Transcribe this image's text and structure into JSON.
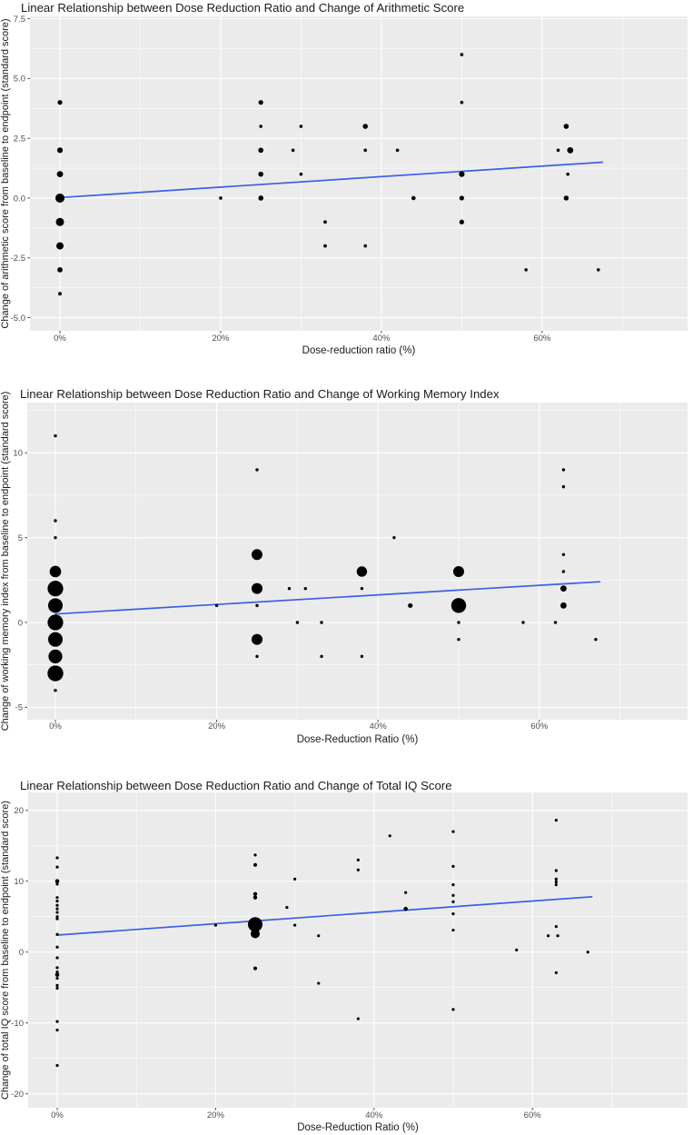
{
  "figure": {
    "kind": "three stacked ggplot-style bubble scatter plots with linear trend lines"
  },
  "colors": {
    "page_bg": "#FFFFFF",
    "panel_bg": "#EBEBEB",
    "grid": "#FFFFFF",
    "point": "#000000",
    "trend": "#3B5FE6",
    "tick_mark": "#333333",
    "tick_label": "#4D4D4D",
    "title_text": "#1A1A1A",
    "axis_title_text": "#1A1A1A"
  },
  "chart_data": [
    {
      "type": "scatter",
      "title": "Linear Relationship between Dose Reduction Ratio and Change of Arithmetic Score",
      "xlabel": "Dose-reduction ratio (%)",
      "ylabel": "Change of arithmetic score from baseline to endpoint (standard score)",
      "legend": "none",
      "grid": "major+minor",
      "x_ticks": {
        "values": [
          0,
          20,
          40,
          60
        ],
        "labels": [
          "0%",
          "20%",
          "40%",
          "60%"
        ]
      },
      "y_ticks": {
        "values": [
          7.5,
          5.0,
          2.5,
          0.0,
          -2.5,
          -5.0
        ],
        "labels": [
          "7.5",
          "5.0",
          "2.5",
          "0.0",
          "-2.5",
          "-5.0"
        ]
      },
      "xlim": [
        -3.73,
        78.1
      ],
      "ylim": [
        -5.55,
        7.6
      ],
      "point_format": [
        "dose_reduction_pct",
        "score_change",
        "marker_radius_px"
      ],
      "points": [
        [
          0,
          4,
          2.6
        ],
        [
          0,
          2,
          3.1
        ],
        [
          0,
          1,
          3.4
        ],
        [
          0,
          0,
          5
        ],
        [
          0,
          -1,
          4.5
        ],
        [
          0,
          -2,
          4
        ],
        [
          0,
          -3,
          2.9
        ],
        [
          0,
          -4,
          2
        ],
        [
          20,
          0,
          1.8
        ],
        [
          25,
          4,
          2.6
        ],
        [
          25,
          3,
          1.8
        ],
        [
          25,
          2,
          2.8
        ],
        [
          25,
          1,
          2.8
        ],
        [
          25,
          0,
          2.8
        ],
        [
          29,
          2,
          1.8
        ],
        [
          30,
          3,
          1.8
        ],
        [
          30,
          1,
          1.8
        ],
        [
          33,
          -1,
          1.9
        ],
        [
          33,
          -2,
          1.9
        ],
        [
          38,
          3,
          2.8
        ],
        [
          38,
          2,
          1.8
        ],
        [
          38,
          -2,
          1.8
        ],
        [
          42,
          2,
          1.8
        ],
        [
          44,
          0,
          2.3
        ],
        [
          50,
          6,
          1.8
        ],
        [
          50,
          4,
          1.8
        ],
        [
          50,
          1,
          3.1
        ],
        [
          50,
          0,
          2.6
        ],
        [
          50,
          -1,
          2.6
        ],
        [
          58,
          -3,
          1.8
        ],
        [
          62,
          2,
          1.8
        ],
        [
          63.5,
          2,
          3.4
        ],
        [
          63,
          3,
          2.8
        ],
        [
          63.2,
          1,
          1.8
        ],
        [
          63,
          0,
          2.7
        ],
        [
          67,
          -3,
          1.8
        ]
      ],
      "trend_line": {
        "x": [
          0,
          67.5
        ],
        "y": [
          0.02,
          1.5
        ]
      }
    },
    {
      "type": "scatter",
      "title": "Linear Relationship between Dose Reduction Ratio and Change of Working Memory Index",
      "xlabel": "Dose-Reduction Ratio (%)",
      "ylabel": "Change of working memory index from baseline to endpoint (standard score)",
      "legend": "none",
      "grid": "major+minor",
      "x_ticks": {
        "values": [
          0,
          20,
          40,
          60
        ],
        "labels": [
          "0%",
          "20%",
          "40%",
          "60%"
        ]
      },
      "y_ticks": {
        "values": [
          10,
          5,
          0,
          -5
        ],
        "labels": [
          "10",
          "5",
          "0",
          "-5"
        ]
      },
      "xlim": [
        -3.49,
        78.38
      ],
      "ylim": [
        -5.73,
        12.96
      ],
      "point_format": [
        "dose_reduction_pct",
        "score_change",
        "marker_radius_px"
      ],
      "points": [
        [
          0,
          11,
          1.7
        ],
        [
          0,
          6,
          1.7
        ],
        [
          0,
          5,
          1.7
        ],
        [
          0,
          3,
          6.3
        ],
        [
          0,
          2,
          8.6
        ],
        [
          0,
          1,
          8
        ],
        [
          0,
          0,
          8.6
        ],
        [
          0,
          -1,
          8
        ],
        [
          0,
          -2,
          7.6
        ],
        [
          0,
          -3,
          8.7
        ],
        [
          0,
          -4,
          1.7
        ],
        [
          20,
          1,
          1.7
        ],
        [
          25,
          9,
          1.7
        ],
        [
          25,
          4,
          6
        ],
        [
          25,
          2,
          6
        ],
        [
          25,
          1,
          1.7
        ],
        [
          25,
          -1,
          6
        ],
        [
          25,
          -2,
          1.7
        ],
        [
          29,
          2,
          1.7
        ],
        [
          31,
          2,
          1.7
        ],
        [
          30,
          0,
          1.7
        ],
        [
          33,
          0,
          1.7
        ],
        [
          33,
          -2,
          1.7
        ],
        [
          38,
          3,
          5.7
        ],
        [
          38,
          2,
          1.7
        ],
        [
          38,
          -2,
          1.7
        ],
        [
          42,
          5,
          1.7
        ],
        [
          44,
          1,
          2.6
        ],
        [
          50,
          3,
          6
        ],
        [
          50,
          1,
          8.2
        ],
        [
          50,
          0,
          1.7
        ],
        [
          50,
          -1,
          1.7
        ],
        [
          58,
          0,
          1.7
        ],
        [
          62,
          0,
          1.7
        ],
        [
          63,
          9,
          1.7
        ],
        [
          63,
          8,
          1.7
        ],
        [
          63,
          4,
          1.7
        ],
        [
          63,
          3,
          1.7
        ],
        [
          63,
          2,
          3.4
        ],
        [
          63,
          1,
          3.4
        ],
        [
          67,
          -1,
          1.7
        ]
      ],
      "trend_line": {
        "x": [
          0,
          67.5
        ],
        "y": [
          0.5,
          2.4
        ]
      }
    },
    {
      "type": "scatter",
      "title": "Linear Relationship between Dose Reduction Ratio and Change of Total IQ Score",
      "xlabel": "Dose-Reduction Ratio (%)",
      "ylabel": "Change of total IQ score from baseline to endpoint (standard score)",
      "legend": "none",
      "grid": "major+minor",
      "x_ticks": {
        "values": [
          0,
          20,
          40,
          60
        ],
        "labels": [
          "0%",
          "20%",
          "40%",
          "60%"
        ]
      },
      "y_ticks": {
        "values": [
          20,
          10,
          0,
          -10,
          -20
        ],
        "labels": [
          "20",
          "10",
          "0",
          "-10",
          "-20"
        ]
      },
      "xlim": [
        -3.67,
        79.59
      ],
      "ylim": [
        -21.96,
        22.53
      ],
      "point_format": [
        "dose_reduction_pct",
        "score_change",
        "marker_radius_px"
      ],
      "points": [
        [
          0,
          13.3,
          1.6
        ],
        [
          0,
          12,
          1.6
        ],
        [
          0,
          10,
          2.3
        ],
        [
          0,
          9.6,
          1.6
        ],
        [
          0,
          7.7,
          1.6
        ],
        [
          0,
          7.2,
          1.6
        ],
        [
          0,
          6.6,
          1.6
        ],
        [
          0,
          6.1,
          1.6
        ],
        [
          0,
          5.6,
          1.6
        ],
        [
          0,
          5,
          1.6
        ],
        [
          0,
          4.7,
          1.6
        ],
        [
          0,
          2.5,
          1.6
        ],
        [
          0,
          0.7,
          1.6
        ],
        [
          0,
          -0.8,
          1.6
        ],
        [
          0,
          -2.2,
          1.6
        ],
        [
          0,
          -2.8,
          1.6
        ],
        [
          0,
          -3.2,
          2.3
        ],
        [
          0,
          -3.7,
          1.6
        ],
        [
          0,
          -4.7,
          1.6
        ],
        [
          0,
          -5.1,
          1.6
        ],
        [
          0,
          -9.8,
          1.6
        ],
        [
          0,
          -11,
          1.6
        ],
        [
          0,
          -16,
          1.6
        ],
        [
          20,
          3.8,
          1.6
        ],
        [
          25,
          13.7,
          1.6
        ],
        [
          25,
          12.3,
          2
        ],
        [
          25,
          8.2,
          2.2
        ],
        [
          25,
          7.7,
          2.2
        ],
        [
          25,
          3.9,
          8
        ],
        [
          25,
          2.6,
          5
        ],
        [
          25,
          -2.3,
          2
        ],
        [
          29,
          6.3,
          1.6
        ],
        [
          30,
          10.3,
          1.6
        ],
        [
          30,
          3.8,
          1.6
        ],
        [
          33,
          2.3,
          1.6
        ],
        [
          33,
          -4.4,
          1.6
        ],
        [
          38,
          13,
          1.6
        ],
        [
          38,
          11.6,
          1.6
        ],
        [
          38,
          -9.4,
          1.6
        ],
        [
          42,
          16.4,
          1.6
        ],
        [
          44,
          8.4,
          1.6
        ],
        [
          44,
          6.1,
          2.3
        ],
        [
          50,
          17,
          1.6
        ],
        [
          50,
          12.1,
          1.6
        ],
        [
          50,
          9.5,
          1.6
        ],
        [
          50,
          8,
          1.6
        ],
        [
          50,
          7.1,
          1.6
        ],
        [
          50,
          5.4,
          1.6
        ],
        [
          50,
          3.1,
          1.6
        ],
        [
          50,
          -8.1,
          1.6
        ],
        [
          58,
          0.3,
          1.6
        ],
        [
          62,
          2.3,
          1.6
        ],
        [
          63.2,
          2.3,
          1.6
        ],
        [
          63,
          18.6,
          1.6
        ],
        [
          63,
          11.5,
          1.6
        ],
        [
          63,
          10.3,
          1.6
        ],
        [
          63,
          9.9,
          1.6
        ],
        [
          63,
          9.5,
          1.6
        ],
        [
          63,
          3.6,
          1.6
        ],
        [
          63,
          -2.9,
          1.6
        ],
        [
          67,
          0,
          1.6
        ]
      ],
      "trend_line": {
        "x": [
          0,
          67.5
        ],
        "y": [
          2.4,
          7.8
        ]
      }
    }
  ]
}
